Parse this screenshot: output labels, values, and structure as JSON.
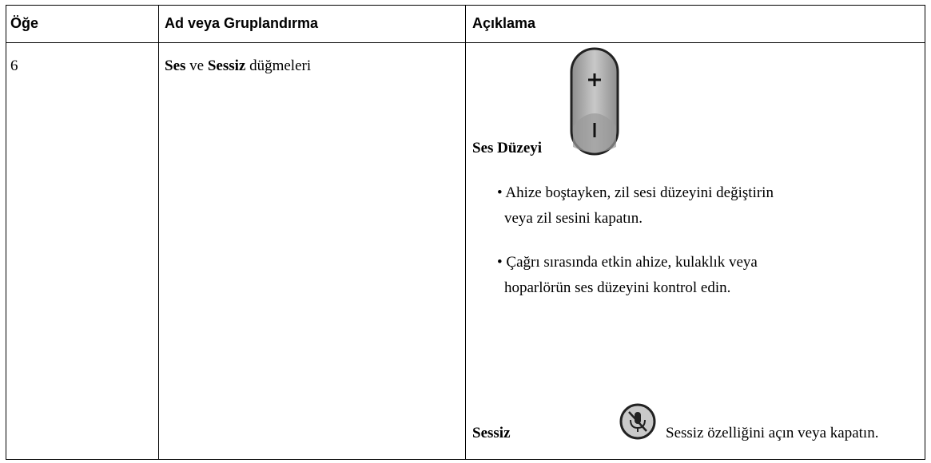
{
  "table": {
    "header": [
      "Öğe",
      "Ad veya Gruplandırma",
      "Açıklama"
    ],
    "rows": [
      {
        "item": "6",
        "name": [
          "Ses",
          "ve",
          "Sessiz",
          "düğmeleri"
        ],
        "description": {
          "volume_label": "Ses Düzeyi",
          "bullets": [
            [
              "Ahize boştayken, zil sesi düzeyini değiştirin",
              "veya zil sesini kapatın."
            ],
            [
              "Çağrı sırasında etkin ahize, kulaklık veya",
              "hoparlörün ses düzeyini kontrol edin."
            ]
          ],
          "mute_label": "Sessiz",
          "mute_text": "Sessiz özelliğini açın veya kapatın."
        }
      }
    ]
  }
}
